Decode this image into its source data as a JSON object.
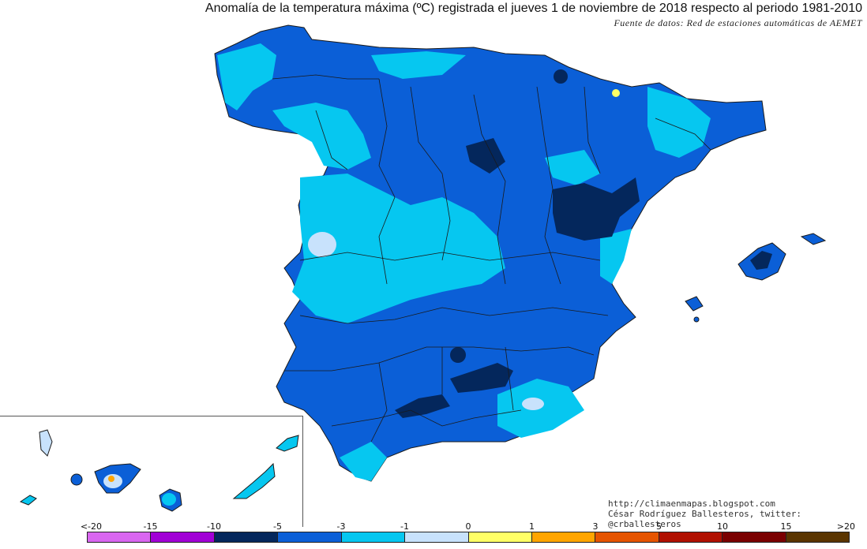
{
  "title": "Anomalía de la temperatura máxima (ºC) registrada el jueves 1 de noviembre de 2018 respecto al periodo 1981-2010",
  "subtitle": "Fuente de datos: Red de estaciones automáticas de AEMET",
  "credits": {
    "url": "http://climaenmapas.blogspot.com",
    "author": "César Rodríguez Ballesteros, twitter: @crballesteros"
  },
  "legend": {
    "labels": [
      "<-20",
      "-15",
      "-10",
      "-5",
      "-3",
      "-1",
      "0",
      "1",
      "3",
      "5",
      "10",
      "15",
      ">20"
    ],
    "colors": [
      "#d966f0",
      "#a100d6",
      "#04275c",
      "#0b5fd7",
      "#06c7f0",
      "#c8e2fc",
      "#ffffff",
      "#ffff66",
      "#ffa500",
      "#e55400",
      "#b01000",
      "#7a0000",
      "#5a3500"
    ]
  },
  "colors": {
    "very_cold": "#04275c",
    "cold": "#0b5fd7",
    "cool": "#06c7f0",
    "slightly_cool": "#c8e2fc",
    "warm": "#ffff66",
    "hot": "#ffa500",
    "border": "#1a1a1a"
  }
}
